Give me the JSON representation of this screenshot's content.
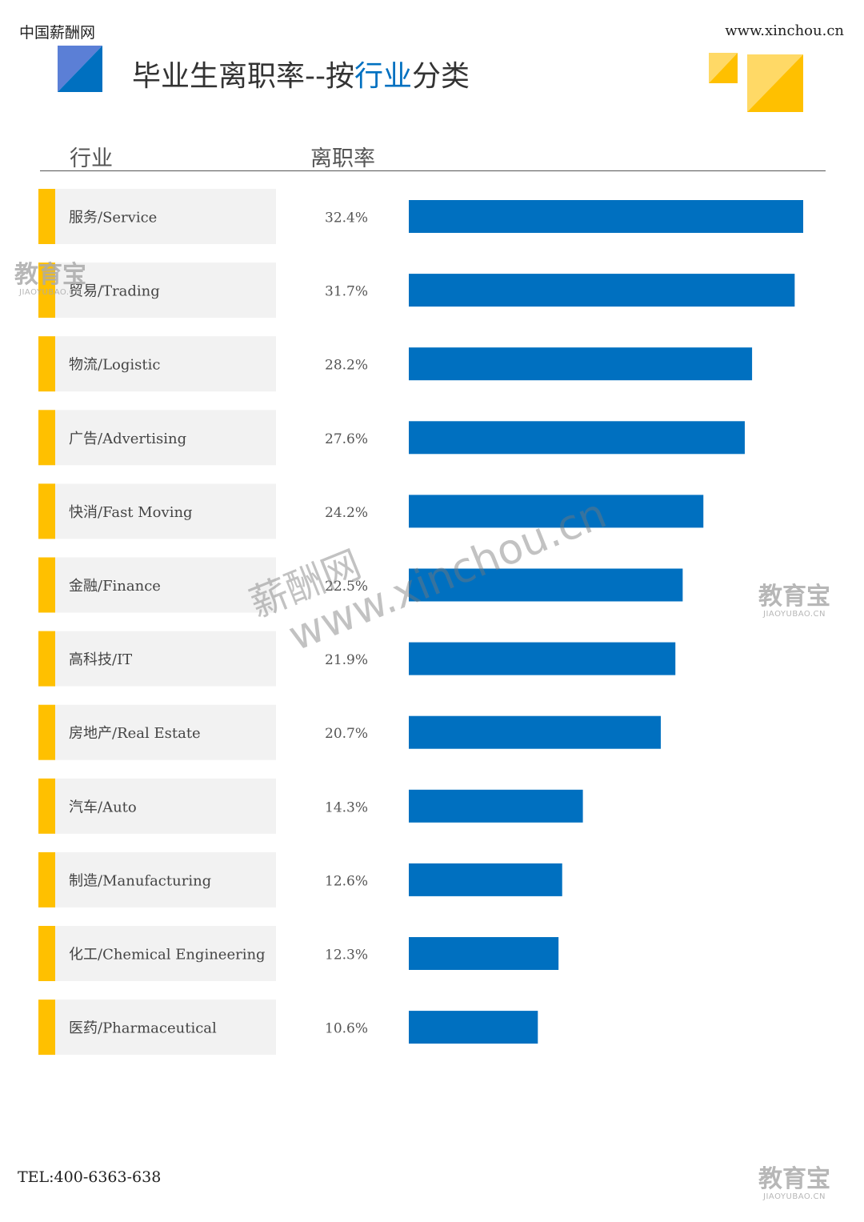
{
  "header": {
    "brand": "中国薪酬网",
    "website": "www.xinchou.cn",
    "title_part1": "毕业生离职率--按",
    "title_highlight": "行业",
    "title_part2": "分类"
  },
  "columns": {
    "industry": "行业",
    "rate": "离职率"
  },
  "colors": {
    "bar": "#0070c0",
    "accent": "#ffc000",
    "row_bg": "#f2f2f2"
  },
  "chart_data": {
    "type": "bar",
    "orientation": "horizontal",
    "categories": [
      "服务/Service",
      "贸易/Trading",
      "物流/Logistic",
      "广告/Advertising",
      "快消/Fast Moving",
      "金融/Finance",
      "高科技/IT",
      "房地产/Real Estate",
      "汽车/Auto",
      "制造/Manufacturing",
      "化工/Chemical Engineering",
      "医药/Pharmaceutical"
    ],
    "values": [
      32.4,
      31.7,
      28.2,
      27.6,
      24.2,
      22.5,
      21.9,
      20.7,
      14.3,
      12.6,
      12.3,
      10.6
    ],
    "labels": [
      "32.4%",
      "31.7%",
      "28.2%",
      "27.6%",
      "24.2%",
      "22.5%",
      "21.9%",
      "20.7%",
      "14.3%",
      "12.6%",
      "12.3%",
      "10.6%"
    ],
    "unit": "%",
    "xlim": [
      0,
      32.4
    ]
  },
  "footer": {
    "tel": "TEL:400-6363-638"
  },
  "watermarks": {
    "diag_line1": "薪酬网",
    "diag_line2": "www.xinchou.cn",
    "stamp_big": "教育宝",
    "stamp_small": "JIAOYUBAO.CN"
  }
}
